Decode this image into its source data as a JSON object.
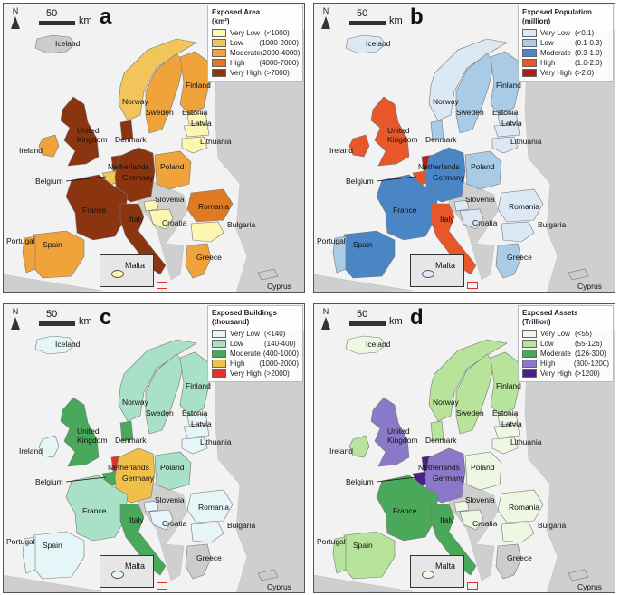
{
  "panels": [
    {
      "letter": "a",
      "legend_title": "Exposed Area\n(km²)",
      "legend": [
        {
          "label": "Very Low",
          "range": "(<1000)",
          "color": "#fdf6b0"
        },
        {
          "label": "Low",
          "range": "(1000-2000)",
          "color": "#f2c55a"
        },
        {
          "label": "Moderate",
          "range": "(2000-4000)",
          "color": "#f0a33a"
        },
        {
          "label": "High",
          "range": "(4000-7000)",
          "color": "#e07a22"
        },
        {
          "label": "Very High",
          "range": "(>7000)",
          "color": "#8b3410"
        }
      ],
      "colors": {
        "iceland": "#cccccc",
        "ireland": "#f0a33a",
        "uk": "#8b3410",
        "norway": "#f2c55a",
        "sweden": "#f0a33a",
        "finland": "#f0a33a",
        "estonia": "#fdf6b0",
        "latvia": "#fdf6b0",
        "lithuania": "#fdf6b0",
        "denmark": "#8b3410",
        "netherlands": "#8b3410",
        "belgium": "#f2c55a",
        "germany": "#8b3410",
        "poland": "#f0a33a",
        "france": "#8b3410",
        "spain": "#f0a33a",
        "portugal": "#f0a33a",
        "italy": "#8b3410",
        "slovenia": "#fdf6b0",
        "croatia": "#fdf6b0",
        "romania": "#e07a22",
        "bulgaria": "#fdf6b0",
        "greece": "#f0a33a",
        "cyprus": "#cccccc",
        "malta": "#fdf6b0"
      }
    },
    {
      "letter": "b",
      "legend_title": "Exposed Population\n(million)",
      "legend": [
        {
          "label": "Very Low",
          "range": "(<0.1)",
          "color": "#dce9f5"
        },
        {
          "label": "Low",
          "range": "(0.1-0.3)",
          "color": "#a9cbe6"
        },
        {
          "label": "Moderate",
          "range": "(0.3-1.0)",
          "color": "#4a86c6"
        },
        {
          "label": "High",
          "range": "(1.0-2.0)",
          "color": "#e8572a"
        },
        {
          "label": "Very High",
          "range": "(>2.0)",
          "color": "#b51b1b"
        }
      ],
      "colors": {
        "iceland": "#dce9f5",
        "ireland": "#e8572a",
        "uk": "#e8572a",
        "norway": "#dce9f5",
        "sweden": "#a9cbe6",
        "finland": "#a9cbe6",
        "estonia": "#dce9f5",
        "latvia": "#dce9f5",
        "lithuania": "#dce9f5",
        "denmark": "#a9cbe6",
        "netherlands": "#b51b1b",
        "belgium": "#e8572a",
        "germany": "#4a86c6",
        "poland": "#a9cbe6",
        "france": "#4a86c6",
        "spain": "#4a86c6",
        "portugal": "#a9cbe6",
        "italy": "#e8572a",
        "slovenia": "#dce9f5",
        "croatia": "#dce9f5",
        "romania": "#dce9f5",
        "bulgaria": "#dce9f5",
        "greece": "#a9cbe6",
        "cyprus": "#cccccc",
        "malta": "#dce9f5"
      }
    },
    {
      "letter": "c",
      "legend_title": "Exposed Buildings\n(thousand)",
      "legend": [
        {
          "label": "Very Low",
          "range": "(<140)",
          "color": "#e6f5f7"
        },
        {
          "label": "Low",
          "range": "(140-400)",
          "color": "#a8e0c8"
        },
        {
          "label": "Moderate",
          "range": "(400-1000)",
          "color": "#4aa85a"
        },
        {
          "label": "High",
          "range": "(1000-2000)",
          "color": "#f0c04a"
        },
        {
          "label": "Very High",
          "range": "(>2000)",
          "color": "#e03030"
        }
      ],
      "colors": {
        "iceland": "#e6f5f7",
        "ireland": "#e6f5f7",
        "uk": "#4aa85a",
        "norway": "#a8e0c8",
        "sweden": "#a8e0c8",
        "finland": "#a8e0c8",
        "estonia": "#e6f5f7",
        "latvia": "#e6f5f7",
        "lithuania": "#e6f5f7",
        "denmark": "#4aa85a",
        "netherlands": "#e03030",
        "belgium": "#4aa85a",
        "germany": "#f0c04a",
        "poland": "#a8e0c8",
        "france": "#a8e0c8",
        "spain": "#e6f5f7",
        "portugal": "#e6f5f7",
        "italy": "#4aa85a",
        "slovenia": "#e6f5f7",
        "croatia": "#e6f5f7",
        "romania": "#e6f5f7",
        "bulgaria": "#e6f5f7",
        "greece": "#cccccc",
        "cyprus": "#cccccc",
        "malta": "#e6f5f7"
      }
    },
    {
      "letter": "d",
      "legend_title": "Exposed Assets\n(Trillion)",
      "legend": [
        {
          "label": "Very Low",
          "range": "(<55)",
          "color": "#eef7e2"
        },
        {
          "label": "Low",
          "range": "(55-126)",
          "color": "#b8e39a"
        },
        {
          "label": "Moderate",
          "range": "(126-300)",
          "color": "#4aa85a"
        },
        {
          "label": "High",
          "range": "(300-1200)",
          "color": "#8a78c8"
        },
        {
          "label": "Very High",
          "range": "(>1200)",
          "color": "#4a1f8a"
        }
      ],
      "colors": {
        "iceland": "#eef7e2",
        "ireland": "#b8e39a",
        "uk": "#8a78c8",
        "norway": "#b8e39a",
        "sweden": "#b8e39a",
        "finland": "#b8e39a",
        "estonia": "#eef7e2",
        "latvia": "#eef7e2",
        "lithuania": "#eef7e2",
        "denmark": "#b8e39a",
        "netherlands": "#4a1f8a",
        "belgium": "#4a1f8a",
        "germany": "#8a78c8",
        "poland": "#eef7e2",
        "france": "#4aa85a",
        "spain": "#b8e39a",
        "portugal": "#b8e39a",
        "italy": "#4aa85a",
        "slovenia": "#eef7e2",
        "croatia": "#eef7e2",
        "romania": "#eef7e2",
        "bulgaria": "#eef7e2",
        "greece": "#cccccc",
        "cyprus": "#cccccc",
        "malta": "#eef7e2"
      }
    }
  ],
  "scale": {
    "value": "50",
    "unit": "km"
  },
  "north_label": "N",
  "country_names": {
    "iceland": "Iceland",
    "ireland": "Ireland",
    "uk": "United\nKingdom",
    "norway": "Norway",
    "sweden": "Sweden",
    "finland": "Finland",
    "estonia": "Estonia",
    "latvia": "Latvia",
    "lithuania": "Lithuania",
    "denmark": "Denmark",
    "netherlands": "Netherlands",
    "belgium": "Belgium",
    "germany": "Germany",
    "poland": "Poland",
    "france": "France",
    "spain": "Spain",
    "portugal": "Portugal",
    "italy": "Italy",
    "slovenia": "Slovenia",
    "croatia": "Croatia",
    "romania": "Romania",
    "bulgaria": "Bulgaria",
    "greece": "Greece",
    "cyprus": "Cyprus",
    "malta": "Malta"
  },
  "colors": {
    "background": "#e4e4e4",
    "land_other": "#cfcfcf",
    "sea": "#f2f2f2"
  }
}
